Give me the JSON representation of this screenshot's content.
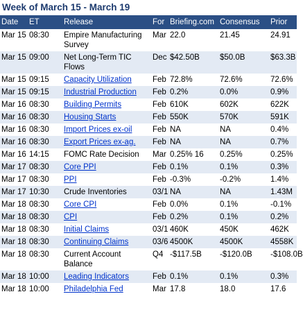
{
  "title": "Week of March 15 - March 19",
  "columns": [
    "Date",
    "ET",
    "Release",
    "For",
    "Briefing.com",
    "Consensus",
    "Prior"
  ],
  "rows": [
    {
      "date": "Mar 15",
      "et": "08:30",
      "release": "Empire Manufacturing Survey",
      "link": false,
      "for": "Mar",
      "briefing": "22.0",
      "consensus": "21.45",
      "prior": "24.91"
    },
    {
      "date": "Mar 15",
      "et": "09:00",
      "release": "Net Long-Term TIC Flows",
      "link": false,
      "for": "Dec",
      "briefing": "$42.50B",
      "consensus": "$50.0B",
      "prior": "$63.3B"
    },
    {
      "date": "Mar 15",
      "et": "09:15",
      "release": "Capacity Utilization",
      "link": true,
      "for": "Feb",
      "briefing": "72.8%",
      "consensus": "72.6%",
      "prior": "72.6%"
    },
    {
      "date": "Mar 15",
      "et": "09:15",
      "release": "Industrial Production",
      "link": true,
      "for": "Feb",
      "briefing": "0.2%",
      "consensus": "0.0%",
      "prior": "0.9%"
    },
    {
      "date": "Mar 16",
      "et": "08:30",
      "release": "Building Permits",
      "link": true,
      "for": "Feb",
      "briefing": "610K",
      "consensus": "602K",
      "prior": "622K"
    },
    {
      "date": "Mar 16",
      "et": "08:30",
      "release": "Housing Starts",
      "link": true,
      "for": "Feb",
      "briefing": "550K",
      "consensus": "570K",
      "prior": "591K"
    },
    {
      "date": "Mar 16",
      "et": "08:30",
      "release": "Import Prices ex-oil",
      "link": true,
      "for": "Feb",
      "briefing": "NA",
      "consensus": "NA",
      "prior": "0.4%"
    },
    {
      "date": "Mar 16",
      "et": "08:30",
      "release": "Export Prices ex-ag.",
      "link": true,
      "for": "Feb",
      "briefing": "NA",
      "consensus": "NA",
      "prior": "0.7%"
    },
    {
      "date": "Mar 16",
      "et": "14:15",
      "release": "FOMC Rate Decision",
      "link": false,
      "for": "Mar",
      "briefing": "0.25% 16",
      "consensus": "0.25%",
      "prior": "0.25%"
    },
    {
      "date": "Mar 17",
      "et": "08:30",
      "release": "Core PPI",
      "link": true,
      "for": "Feb",
      "briefing": "0.1%",
      "consensus": "0.1%",
      "prior": "0.3%"
    },
    {
      "date": "Mar 17",
      "et": "08:30",
      "release": "PPI",
      "link": true,
      "for": "Feb",
      "briefing": "-0.3%",
      "consensus": "-0.2%",
      "prior": "1.4%"
    },
    {
      "date": "Mar 17",
      "et": "10:30",
      "release": "Crude Inventories",
      "link": false,
      "for": "03/1",
      "briefing": "NA",
      "consensus": "NA",
      "prior": "1.43M"
    },
    {
      "date": "Mar 18",
      "et": "08:30",
      "release": "Core CPI",
      "link": true,
      "for": "Feb",
      "briefing": "0.0%",
      "consensus": "0.1%",
      "prior": "-0.1%"
    },
    {
      "date": "Mar 18",
      "et": "08:30",
      "release": "CPI",
      "link": true,
      "for": "Feb",
      "briefing": "0.2%",
      "consensus": "0.1%",
      "prior": "0.2%"
    },
    {
      "date": "Mar 18",
      "et": "08:30",
      "release": "Initial Claims",
      "link": true,
      "for": "03/1",
      "briefing": "460K",
      "consensus": "450K",
      "prior": "462K"
    },
    {
      "date": "Mar 18",
      "et": "08:30",
      "release": "Continuing Claims",
      "link": true,
      "for": "03/6",
      "briefing": "4500K",
      "consensus": "4500K",
      "prior": "4558K"
    },
    {
      "date": "Mar 18",
      "et": "08:30",
      "release": "Current Account Balance",
      "link": false,
      "for": "Q4",
      "briefing": "-$117.5B",
      "consensus": "-$120.0B",
      "prior": "-$108.0B"
    },
    {
      "date": "Mar 18",
      "et": "10:00",
      "release": "Leading Indicators",
      "link": true,
      "for": "Feb",
      "briefing": "0.1%",
      "consensus": "0.1%",
      "prior": "0.3%"
    },
    {
      "date": "Mar 18",
      "et": "10:00",
      "release": "Philadelphia Fed",
      "link": true,
      "for": "Mar",
      "briefing": "17.8",
      "consensus": "18.0",
      "prior": "17.6"
    }
  ]
}
